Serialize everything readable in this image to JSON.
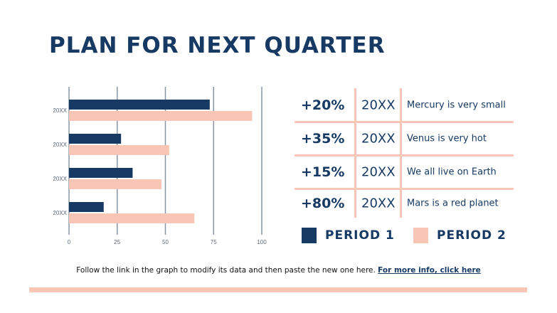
{
  "title": "PLAN FOR NEXT QUARTER",
  "colors": {
    "navy": "#163a63",
    "peach": "#f9c6b5",
    "grid": "#8a97a6"
  },
  "chart_data": {
    "type": "bar",
    "orientation": "horizontal",
    "categories": [
      "20XX",
      "20XX",
      "20XX",
      "20XX"
    ],
    "series": [
      {
        "name": "PERIOD 1",
        "color": "#163a63",
        "values": [
          73,
          27,
          33,
          18
        ]
      },
      {
        "name": "PERIOD 2",
        "color": "#f9c6b5",
        "values": [
          95,
          52,
          48,
          65
        ]
      }
    ],
    "xticks": [
      0,
      25,
      50,
      75,
      100
    ],
    "xlim": [
      0,
      100
    ],
    "grid": true,
    "legend": "bottom-right"
  },
  "table": {
    "rows": [
      {
        "pct": "+20%",
        "year": "20XX",
        "desc": "Mercury is very small"
      },
      {
        "pct": "+35%",
        "year": "20XX",
        "desc": "Venus is very hot"
      },
      {
        "pct": "+15%",
        "year": "20XX",
        "desc": "We all live on Earth"
      },
      {
        "pct": "+80%",
        "year": "20XX",
        "desc": "Mars is a red planet"
      }
    ]
  },
  "legend": {
    "period1": "PERIOD 1",
    "period2": "PERIOD 2"
  },
  "footer": {
    "text": "Follow the link in the graph to modify its data and then paste the new one here. ",
    "link": "For more info, click here"
  }
}
